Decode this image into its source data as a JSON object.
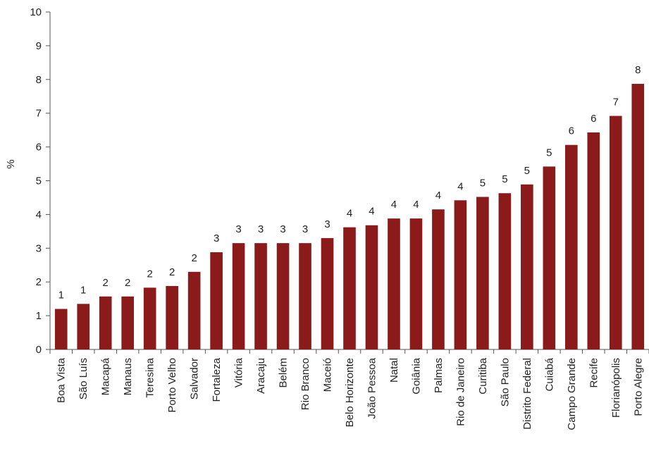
{
  "chart_data": {
    "type": "bar",
    "title": "",
    "xlabel": "",
    "ylabel": "%",
    "ylim": [
      0,
      10
    ],
    "yticks": [
      0,
      1,
      2,
      3,
      4,
      5,
      6,
      7,
      8,
      9,
      10
    ],
    "grid": false,
    "bar_color": "#8b1a1a",
    "categories": [
      "Boa Vista",
      "São Luís",
      "Macapá",
      "Manaus",
      "Teresina",
      "Porto Velho",
      "Salvador",
      "Fortaleza",
      "Vitória",
      "Aracaju",
      "Belém",
      "Rio Branco",
      "Maceió",
      "Belo Horizonte",
      "João Pessoa",
      "Natal",
      "Goiânia",
      "Palmas",
      "Rio de Janeiro",
      "Curitiba",
      "São Paulo",
      "Distrito Federal",
      "Cuiabá",
      "Campo Grande",
      "Recife",
      "Florianópolis",
      "Porto Alegre"
    ],
    "values": [
      1.2,
      1.35,
      1.57,
      1.57,
      1.83,
      1.88,
      2.3,
      2.88,
      3.15,
      3.15,
      3.15,
      3.15,
      3.3,
      3.62,
      3.68,
      3.88,
      3.88,
      4.15,
      4.42,
      4.52,
      4.63,
      4.89,
      5.42,
      6.06,
      6.43,
      6.92,
      7.87
    ],
    "data_labels": [
      "1",
      "1",
      "2",
      "2",
      "2",
      "2",
      "2",
      "3",
      "3",
      "3",
      "3",
      "3",
      "3",
      "4",
      "4",
      "4",
      "4",
      "4",
      "4",
      "5",
      "5",
      "5",
      "5",
      "6",
      "6",
      "7",
      "8"
    ]
  }
}
